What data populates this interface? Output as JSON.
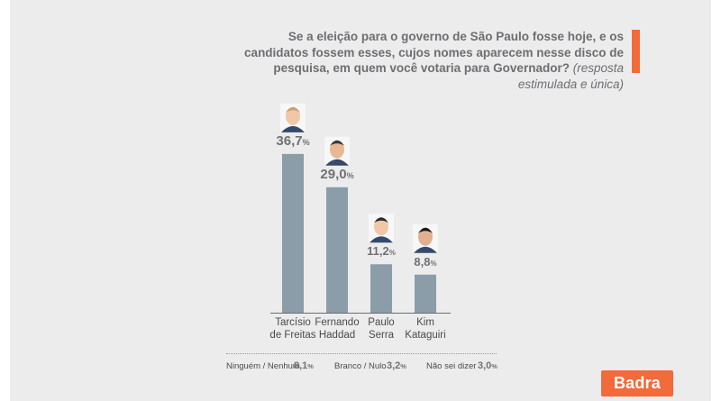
{
  "title": {
    "main": "Se a eleição para o governo de São Paulo fosse hoje, e os candidatos fossem esses, cujos nomes aparecem nesse disco de pesquisa, em quem você votaria para Governador?",
    "sub": "(resposta estimulada e única)"
  },
  "colors": {
    "bar": "#8b9da8",
    "accent": "#f26b3a",
    "background": "#ececed"
  },
  "chart_data": {
    "type": "bar",
    "categories": [
      "Tarcísio de Freitas",
      "Fernando Haddad",
      "Paulo Serra",
      "Kim Kataguiri"
    ],
    "category_lines": [
      [
        "Tarcísio",
        "de Freitas"
      ],
      [
        "Fernando",
        "Haddad"
      ],
      [
        "Paulo",
        "Serra"
      ],
      [
        "Kim",
        "Kataguiri"
      ]
    ],
    "values": [
      36.7,
      29.0,
      11.2,
      8.8
    ],
    "value_labels": [
      "36,7",
      "29,0",
      "11,2",
      "8,8"
    ],
    "unit": "%",
    "icons": [
      "caricature-tarcisio-icon",
      "caricature-haddad-icon",
      "caricature-serra-icon",
      "caricature-kataguiri-icon"
    ]
  },
  "footer": {
    "items": [
      {
        "label": "Ninguém / Nenhum",
        "value": "8,1"
      },
      {
        "label": "Branco / Nulo",
        "value": "3,2"
      },
      {
        "label": "Não sei dizer",
        "value": "3,0"
      }
    ],
    "unit": "%"
  },
  "brand": {
    "name": "Badra"
  }
}
